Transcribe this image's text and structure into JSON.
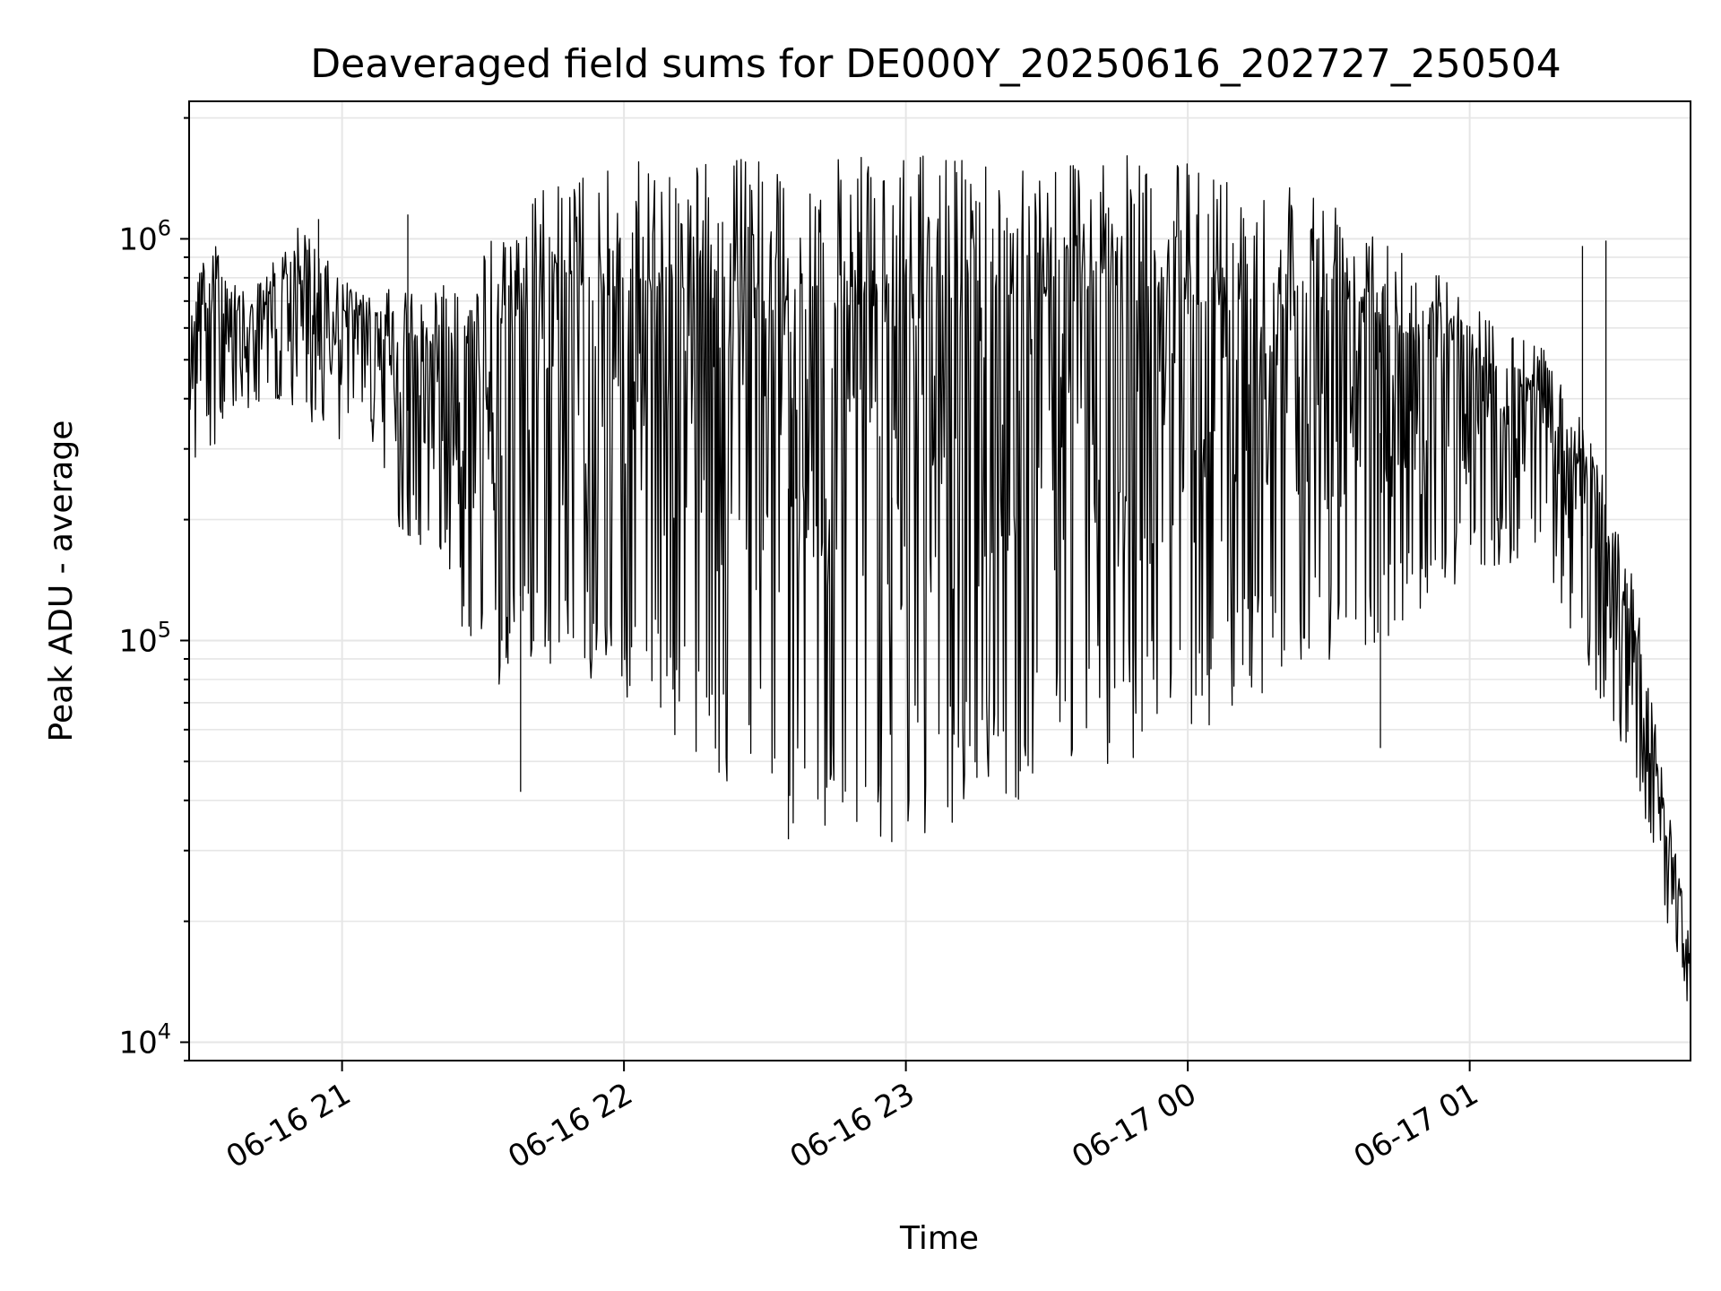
{
  "chart_data": {
    "type": "line",
    "title": "Deaveraged field sums for DE000Y_20250616_202727_250504",
    "xlabel": "Time",
    "ylabel": "Peak ADU - average",
    "yscale": "log",
    "ylim": [
      9000,
      2200000
    ],
    "xlim": [
      "2025-06-16 20:27:27",
      "2025-06-17 01:47:00"
    ],
    "grid": true,
    "x_ticks": [
      {
        "t": "2025-06-16 21:00",
        "label": "06-16 21"
      },
      {
        "t": "2025-06-16 22:00",
        "label": "06-16 22"
      },
      {
        "t": "2025-06-16 23:00",
        "label": "06-16 23"
      },
      {
        "t": "2025-06-17 00:00",
        "label": "06-17 00"
      },
      {
        "t": "2025-06-17 01:00",
        "label": "06-17 01"
      }
    ],
    "y_ticks": [
      {
        "v": 10000,
        "base": "10",
        "exp": "4"
      },
      {
        "v": 100000,
        "base": "10",
        "exp": "5"
      },
      {
        "v": 1000000,
        "base": "10",
        "exp": "6"
      }
    ],
    "series": [
      {
        "color": "#000000",
        "x_start": "2025-06-16 20:27:27",
        "x_end": "2025-06-17 01:47:00",
        "envelope": [
          {
            "t": "2025-06-16 20:27:27",
            "low": 260000,
            "high": 800000
          },
          {
            "t": "2025-06-16 20:32",
            "low": 300000,
            "high": 1050000
          },
          {
            "t": "2025-06-16 20:40",
            "low": 370000,
            "high": 700000
          },
          {
            "t": "2025-06-16 20:50",
            "low": 380000,
            "high": 1120000
          },
          {
            "t": "2025-06-16 20:58",
            "low": 300000,
            "high": 850000
          },
          {
            "t": "2025-06-16 21:05",
            "low": 380000,
            "high": 720000
          },
          {
            "t": "2025-06-16 21:10",
            "low": 200000,
            "high": 750000
          },
          {
            "t": "2025-06-16 21:20",
            "low": 160000,
            "high": 780000
          },
          {
            "t": "2025-06-16 21:30",
            "low": 70000,
            "high": 950000
          },
          {
            "t": "2025-06-16 21:40",
            "low": 90000,
            "high": 1300000
          },
          {
            "t": "2025-06-16 21:50",
            "low": 80000,
            "high": 1450000
          },
          {
            "t": "2025-06-16 22:00",
            "low": 70000,
            "high": 1550000
          },
          {
            "t": "2025-06-16 22:20",
            "low": 45000,
            "high": 1600000
          },
          {
            "t": "2025-06-16 22:40",
            "low": 33000,
            "high": 1600000
          },
          {
            "t": "2025-06-16 23:00",
            "low": 32000,
            "high": 1600000
          },
          {
            "t": "2025-06-16 23:20",
            "low": 38000,
            "high": 1650000
          },
          {
            "t": "2025-06-16 23:40",
            "low": 48000,
            "high": 1650000
          },
          {
            "t": "2025-06-17 00:00",
            "low": 55000,
            "high": 1550000
          },
          {
            "t": "2025-06-17 00:20",
            "low": 80000,
            "high": 1450000
          },
          {
            "t": "2025-06-17 00:40",
            "low": 90000,
            "high": 1200000
          },
          {
            "t": "2025-06-17 01:00",
            "low": 150000,
            "high": 700000
          },
          {
            "t": "2025-06-17 01:15",
            "low": 160000,
            "high": 550000
          },
          {
            "t": "2025-06-17 01:25",
            "low": 85000,
            "high": 350000
          },
          {
            "t": "2025-06-17 01:35",
            "low": 45000,
            "high": 140000
          },
          {
            "t": "2025-06-17 01:42",
            "low": 20000,
            "high": 40000
          },
          {
            "t": "2025-06-17 01:47:00",
            "low": 11500,
            "high": 18000
          }
        ],
        "notable_points": [
          {
            "t": "2025-06-16 20:55",
            "v": 1120000
          },
          {
            "t": "2025-06-16 21:14",
            "v": 1150000
          },
          {
            "t": "2025-06-16 21:34",
            "v": 100000
          },
          {
            "t": "2025-06-16 21:38",
            "v": 42000
          },
          {
            "t": "2025-06-16 22:35",
            "v": 32000
          },
          {
            "t": "2025-06-16 22:57",
            "v": 31500
          },
          {
            "t": "2025-06-17 00:41",
            "v": 54000
          },
          {
            "t": "2025-06-17 01:24",
            "v": 960000
          },
          {
            "t": "2025-06-17 01:29",
            "v": 990000
          },
          {
            "t": "2025-06-17 01:47:00",
            "v": 11500
          }
        ]
      }
    ]
  }
}
